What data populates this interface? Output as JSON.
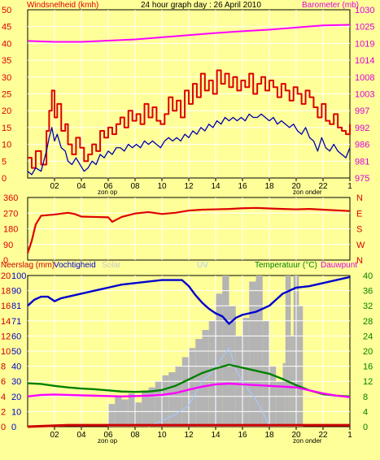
{
  "title": "24 hour graph day : 26 April 2010",
  "colors": {
    "background": "#ffff99",
    "plot_bg": "#ffff99",
    "grid": "#ffffff",
    "wind_gust": "#dd0000",
    "wind_avg": "#0000aa",
    "barometer": "#ff00ff",
    "direction": "#dd0000",
    "rain": "#cc0000",
    "humidity": "#0000cc",
    "solar": "#b4b4b4",
    "uv": "#a8c8ff",
    "temperature": "#008000",
    "dewpoint": "#ff00ff"
  },
  "chart_data": [
    {
      "type": "line",
      "id": "wind",
      "left_label": "Windsnelheid (kmh)",
      "right_label": "Barometer (mb)",
      "left_ticks": [
        "0",
        "5",
        "10",
        "15",
        "20",
        "25",
        "30",
        "35",
        "40",
        "45",
        "50"
      ],
      "right_ticks": [
        "975",
        "981",
        "986",
        "992",
        "997",
        "1003",
        "1008",
        "1014",
        "1019",
        "1025",
        "1030"
      ],
      "ylim": [
        0,
        50
      ],
      "right_ylim": [
        975,
        1030
      ],
      "xlim": [
        0,
        24
      ],
      "x_ticks": [
        "02",
        "04",
        "06",
        "08",
        "10",
        "12",
        "14",
        "16",
        "18",
        "20",
        "22",
        "1"
      ],
      "sunrise_label": "zon op",
      "sunset_label": "zon onder",
      "sunrise_hour": 6.3,
      "sunset_hour": 20.6,
      "series": [
        {
          "name": "gust",
          "color_key": "wind_gust",
          "step": true,
          "x": [
            0,
            0.3,
            0.6,
            1.0,
            1.4,
            1.6,
            1.8,
            2.0,
            2.2,
            2.5,
            2.8,
            3.0,
            3.3,
            3.6,
            3.9,
            4.2,
            4.5,
            4.8,
            5.1,
            5.4,
            5.7,
            6.0,
            6.3,
            6.6,
            6.9,
            7.2,
            7.5,
            7.8,
            8.1,
            8.4,
            8.7,
            9.0,
            9.3,
            9.6,
            9.9,
            10.2,
            10.5,
            10.8,
            11.1,
            11.4,
            11.7,
            12.0,
            12.3,
            12.6,
            12.9,
            13.2,
            13.5,
            13.8,
            14.1,
            14.4,
            14.7,
            15.0,
            15.3,
            15.6,
            15.9,
            16.2,
            16.5,
            16.8,
            17.1,
            17.4,
            17.7,
            18.0,
            18.3,
            18.6,
            18.9,
            19.2,
            19.5,
            19.8,
            20.1,
            20.4,
            20.7,
            21.0,
            21.3,
            21.6,
            21.9,
            22.2,
            22.5,
            22.8,
            23.1,
            23.4,
            23.7,
            24.0
          ],
          "values": [
            6,
            3,
            8,
            4,
            14,
            20,
            26,
            18,
            22,
            14,
            16,
            10,
            7,
            12,
            9,
            5,
            7,
            10,
            8,
            14,
            12,
            15,
            13,
            16,
            18,
            15,
            20,
            17,
            19,
            16,
            22,
            18,
            21,
            17,
            16,
            19,
            24,
            20,
            23,
            18,
            26,
            22,
            28,
            24,
            31,
            26,
            29,
            25,
            32,
            28,
            31,
            27,
            30,
            26,
            29,
            27,
            31,
            25,
            28,
            30,
            26,
            29,
            27,
            24,
            28,
            26,
            23,
            27,
            25,
            22,
            26,
            24,
            21,
            18,
            22,
            17,
            16,
            19,
            15,
            14,
            13,
            16
          ],
          "units": "kmh"
        },
        {
          "name": "avg",
          "color_key": "wind_avg",
          "step": false,
          "x": [
            0,
            0.3,
            0.6,
            1.0,
            1.4,
            1.6,
            1.8,
            2.0,
            2.2,
            2.5,
            2.8,
            3.0,
            3.3,
            3.6,
            3.9,
            4.2,
            4.5,
            4.8,
            5.1,
            5.4,
            5.7,
            6.0,
            6.3,
            6.6,
            6.9,
            7.2,
            7.5,
            7.8,
            8.1,
            8.4,
            8.7,
            9.0,
            9.3,
            9.6,
            9.9,
            10.2,
            10.5,
            10.8,
            11.1,
            11.4,
            11.7,
            12.0,
            12.3,
            12.6,
            12.9,
            13.2,
            13.5,
            13.8,
            14.1,
            14.4,
            14.7,
            15.0,
            15.3,
            15.6,
            15.9,
            16.2,
            16.5,
            16.8,
            17.1,
            17.4,
            17.7,
            18.0,
            18.3,
            18.6,
            18.9,
            19.2,
            19.5,
            19.8,
            20.1,
            20.4,
            20.7,
            21.0,
            21.3,
            21.6,
            21.9,
            22.2,
            22.5,
            22.8,
            23.1,
            23.4,
            23.7,
            24.0
          ],
          "values": [
            2,
            1,
            3,
            2,
            8,
            12,
            15,
            11,
            13,
            9,
            8,
            5,
            4,
            6,
            4,
            2,
            3,
            5,
            4,
            7,
            6,
            8,
            7,
            9,
            9,
            8,
            10,
            9,
            10,
            9,
            11,
            10,
            11,
            10,
            9,
            11,
            12,
            11,
            12,
            11,
            13,
            12,
            14,
            13,
            15,
            14,
            16,
            15,
            17,
            16,
            18,
            17,
            18,
            17,
            18,
            17,
            19,
            18,
            18,
            19,
            18,
            17,
            18,
            16,
            17,
            16,
            15,
            16,
            14,
            13,
            15,
            12,
            11,
            8,
            12,
            9,
            8,
            10,
            8,
            7,
            6,
            9
          ],
          "units": "kmh"
        },
        {
          "name": "barometer",
          "color_key": "barometer",
          "axis": "right",
          "step": false,
          "x": [
            0,
            2,
            4,
            6,
            8,
            10,
            12,
            14,
            16,
            18,
            20,
            22,
            24
          ],
          "values": [
            1019.8,
            1019.5,
            1019.5,
            1019.9,
            1020.3,
            1021.0,
            1021.7,
            1022.4,
            1023.0,
            1023.5,
            1024.2,
            1024.9,
            1025.1
          ],
          "units": "mb"
        }
      ]
    },
    {
      "type": "line",
      "id": "direction",
      "left_ticks": [
        "0",
        "90",
        "180",
        "270",
        "360"
      ],
      "right_ticks": [
        "N",
        "W",
        "S",
        "E",
        "N"
      ],
      "ylim": [
        0,
        360
      ],
      "xlim": [
        0,
        24
      ],
      "series": [
        {
          "name": "direction",
          "color_key": "direction",
          "x": [
            0,
            0.3,
            0.6,
            1.0,
            2.0,
            3.0,
            3.5,
            4.0,
            5.0,
            6.0,
            6.3,
            7.0,
            8.0,
            9.0,
            10.0,
            11.0,
            12.0,
            13.0,
            14.0,
            15.0,
            16.0,
            17.0,
            18.0,
            19.0,
            20.0,
            21.0,
            22.0,
            23.0,
            24.0
          ],
          "values": [
            40,
            110,
            205,
            255,
            262,
            272,
            265,
            250,
            248,
            246,
            220,
            248,
            268,
            276,
            265,
            272,
            285,
            290,
            292,
            294,
            298,
            300,
            297,
            294,
            292,
            294,
            290,
            286,
            282
          ]
        }
      ]
    },
    {
      "type": "line",
      "id": "humidity_temp",
      "left_label_1": "Neerslag (mm)",
      "left_label_2": "Vochtigheid",
      "mid_label_1": "Solar",
      "mid_label_2": "UV",
      "right_label_1": "Temperatuur (°C)",
      "right_label_2": "Dauwpunt",
      "rain_ticks": [
        "0",
        "2",
        "4",
        "6",
        "8",
        "10",
        "12",
        "14",
        "16",
        "18",
        "20"
      ],
      "humidity_ticks": [
        "0",
        "10",
        "20",
        "30",
        "40",
        "50",
        "60",
        "71",
        "81",
        "90",
        "100"
      ],
      "right_ticks": [
        "0",
        "4",
        "8",
        "12",
        "16",
        "20",
        "24",
        "28",
        "32",
        "36",
        "40"
      ],
      "ylim": [
        0,
        100
      ],
      "right_ylim": [
        0,
        40
      ],
      "xlim": [
        0,
        24
      ],
      "x_ticks": [
        "02",
        "04",
        "06",
        "08",
        "10",
        "12",
        "14",
        "16",
        "18",
        "20",
        "22",
        "1"
      ],
      "sunrise_label": "zon op",
      "sunset_label": "zon onder",
      "series": [
        {
          "name": "humidity",
          "color_key": "humidity",
          "units": "%",
          "x": [
            0,
            0.5,
            1.0,
            1.5,
            2.0,
            2.5,
            3.0,
            4.0,
            5.0,
            6.0,
            7.0,
            8.0,
            9.0,
            10.0,
            11.0,
            11.5,
            12.0,
            12.5,
            13.0,
            13.5,
            14.0,
            14.5,
            15.0,
            15.5,
            16.0,
            17.0,
            18.0,
            18.5,
            19.0,
            19.5,
            20.0,
            21.0,
            22.0,
            23.0,
            23.5,
            24.0
          ],
          "values": [
            80,
            84,
            86,
            86,
            83,
            85,
            86,
            88,
            90,
            92,
            94,
            95,
            96,
            97,
            97,
            97,
            93,
            87,
            82,
            78,
            75,
            73,
            68,
            72,
            74,
            76,
            80,
            84,
            88,
            90,
            92,
            93,
            95,
            97,
            98,
            99
          ]
        },
        {
          "name": "solar",
          "color_key": "solar",
          "x": [
            5.8,
            6.0,
            6.5,
            7.0,
            7.5,
            8.0,
            8.5,
            9.0,
            9.5,
            10.0,
            10.5,
            11.0,
            11.5,
            12.0,
            12.5,
            13.0,
            13.5,
            14.0,
            14.5,
            15.0,
            15.5,
            16.0,
            16.5,
            17.0,
            17.5,
            18.0,
            18.5,
            19.0,
            19.2,
            19.4,
            19.6,
            19.8,
            20.0,
            20.2,
            20.5
          ],
          "values": [
            0,
            15,
            20,
            18,
            22,
            16,
            24,
            26,
            30,
            34,
            36,
            40,
            46,
            52,
            58,
            64,
            70,
            88,
            100,
            80,
            60,
            72,
            96,
            100,
            70,
            40,
            30,
            42,
            100,
            100,
            60,
            100,
            100,
            80,
            0
          ]
        },
        {
          "name": "uv",
          "color_key": "uv",
          "x": [
            9.0,
            10.0,
            11.0,
            12.0,
            12.5,
            13.0,
            13.5,
            14.0,
            14.5,
            15.0,
            15.5,
            16.0,
            16.5,
            17.0,
            17.5,
            18.0
          ],
          "values": [
            0,
            4,
            8,
            14,
            22,
            30,
            34,
            40,
            46,
            52,
            38,
            30,
            24,
            18,
            10,
            0
          ]
        },
        {
          "name": "temperature",
          "color_key": "temperature",
          "axis": "right",
          "units": "°C",
          "x": [
            0,
            1,
            2,
            3,
            4,
            5,
            6,
            7,
            8,
            9,
            10,
            11,
            12,
            13,
            14,
            15,
            16,
            17,
            18,
            19,
            20,
            21,
            22,
            23,
            24
          ],
          "values": [
            11.5,
            11.3,
            10.8,
            10.4,
            10.1,
            9.9,
            9.6,
            9.3,
            9.2,
            9.3,
            9.7,
            10.8,
            12.5,
            14.2,
            15.4,
            16.4,
            15.6,
            14.8,
            14.0,
            12.6,
            11.0,
            9.6,
            8.6,
            8.2,
            8.0
          ]
        },
        {
          "name": "dewpoint",
          "color_key": "dewpoint",
          "axis": "right",
          "units": "°C",
          "x": [
            0,
            1,
            2,
            3,
            4,
            5,
            6,
            7,
            8,
            9,
            10,
            11,
            12,
            13,
            14,
            15,
            16,
            17,
            18,
            19,
            20,
            21,
            22,
            23,
            24
          ],
          "values": [
            8.0,
            8.4,
            8.5,
            8.4,
            8.3,
            8.2,
            8.1,
            8.0,
            8.1,
            8.2,
            8.4,
            8.9,
            9.8,
            10.6,
            11.2,
            11.4,
            11.2,
            11.0,
            10.8,
            10.6,
            10.4,
            9.6,
            8.8,
            8.2,
            7.8
          ]
        },
        {
          "name": "rain",
          "color_key": "rain",
          "x": [
            0,
            3.0,
            24.0
          ],
          "values": [
            0,
            0.2,
            0.2
          ],
          "units": "mm"
        }
      ]
    }
  ]
}
